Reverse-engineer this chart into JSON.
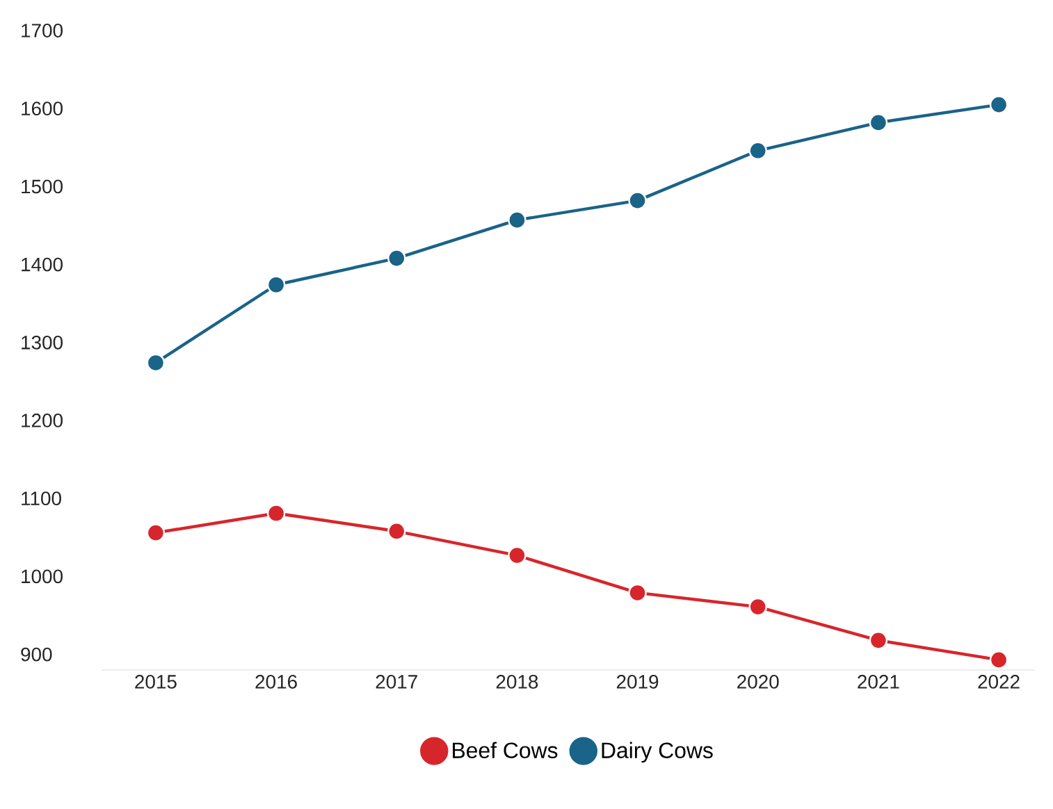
{
  "chart_data": {
    "type": "line",
    "categories": [
      "2015",
      "2016",
      "2017",
      "2018",
      "2019",
      "2020",
      "2021",
      "2022"
    ],
    "series": [
      {
        "name": "Beef Cows",
        "color": "#d7262b",
        "values": [
          1056,
          1081,
          1058,
          1027,
          979,
          961,
          918,
          893
        ]
      },
      {
        "name": "Dairy Cows",
        "color": "#1a6389",
        "values": [
          1274,
          1374,
          1408,
          1457,
          1482,
          1546,
          1582,
          1605
        ]
      }
    ],
    "ylim": [
      880,
      1700
    ],
    "yticks": [
      900,
      1000,
      1100,
      1200,
      1300,
      1400,
      1500,
      1600,
      1700
    ],
    "legend": "bottom",
    "marker": "circle",
    "line_style": "solid"
  }
}
